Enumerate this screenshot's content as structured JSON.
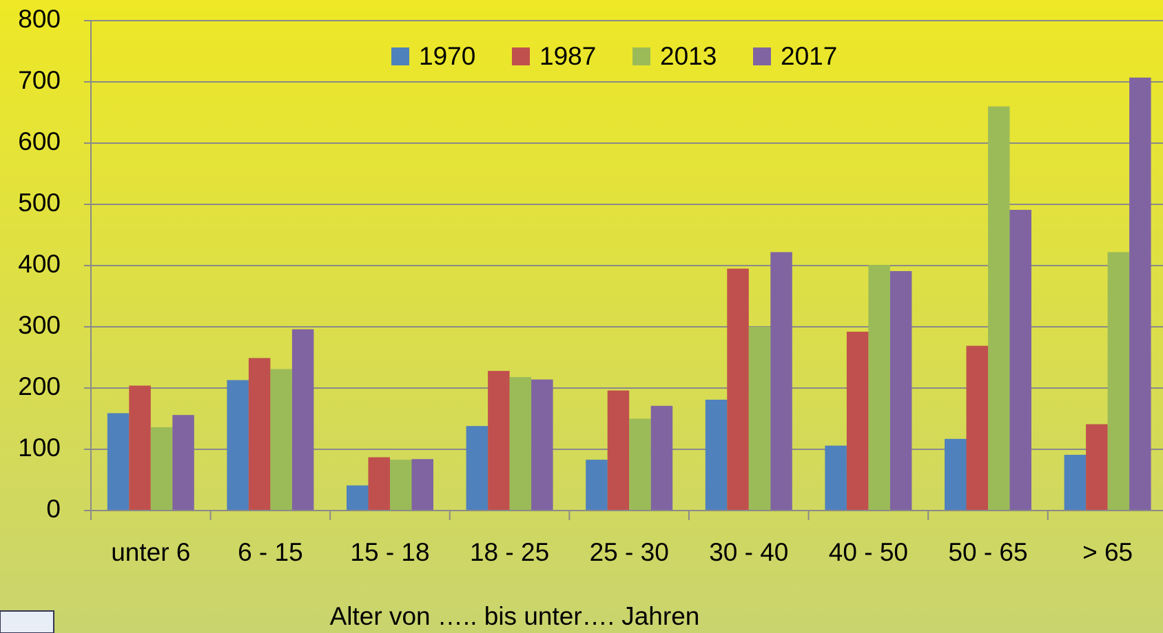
{
  "chart_data": {
    "type": "bar",
    "x_label": "Alter von ….. bis unter…. Jahren",
    "categories": [
      "unter 6",
      "6 - 15",
      "15 - 18",
      "18 - 25",
      "25 - 30",
      "30 - 40",
      "40 - 50",
      "50 - 65",
      "> 65"
    ],
    "series": [
      {
        "name": "1970",
        "color": "#4f81bd",
        "values": [
          159,
          213,
          41,
          138,
          83,
          181,
          106,
          117,
          91
        ]
      },
      {
        "name": "1987",
        "color": "#c0504d",
        "values": [
          204,
          249,
          87,
          228,
          196,
          395,
          292,
          269,
          141
        ]
      },
      {
        "name": "2013",
        "color": "#9bbb59",
        "values": [
          136,
          231,
          83,
          218,
          150,
          300,
          401,
          660,
          422
        ]
      },
      {
        "name": "2017",
        "color": "#8064a2",
        "values": [
          156,
          296,
          84,
          214,
          171,
          422,
          391,
          491,
          707
        ]
      }
    ],
    "ylim": [
      0,
      800
    ],
    "yticks": [
      0,
      100,
      200,
      300,
      400,
      500,
      600,
      700,
      800
    ],
    "grid": true,
    "legend": "top"
  }
}
